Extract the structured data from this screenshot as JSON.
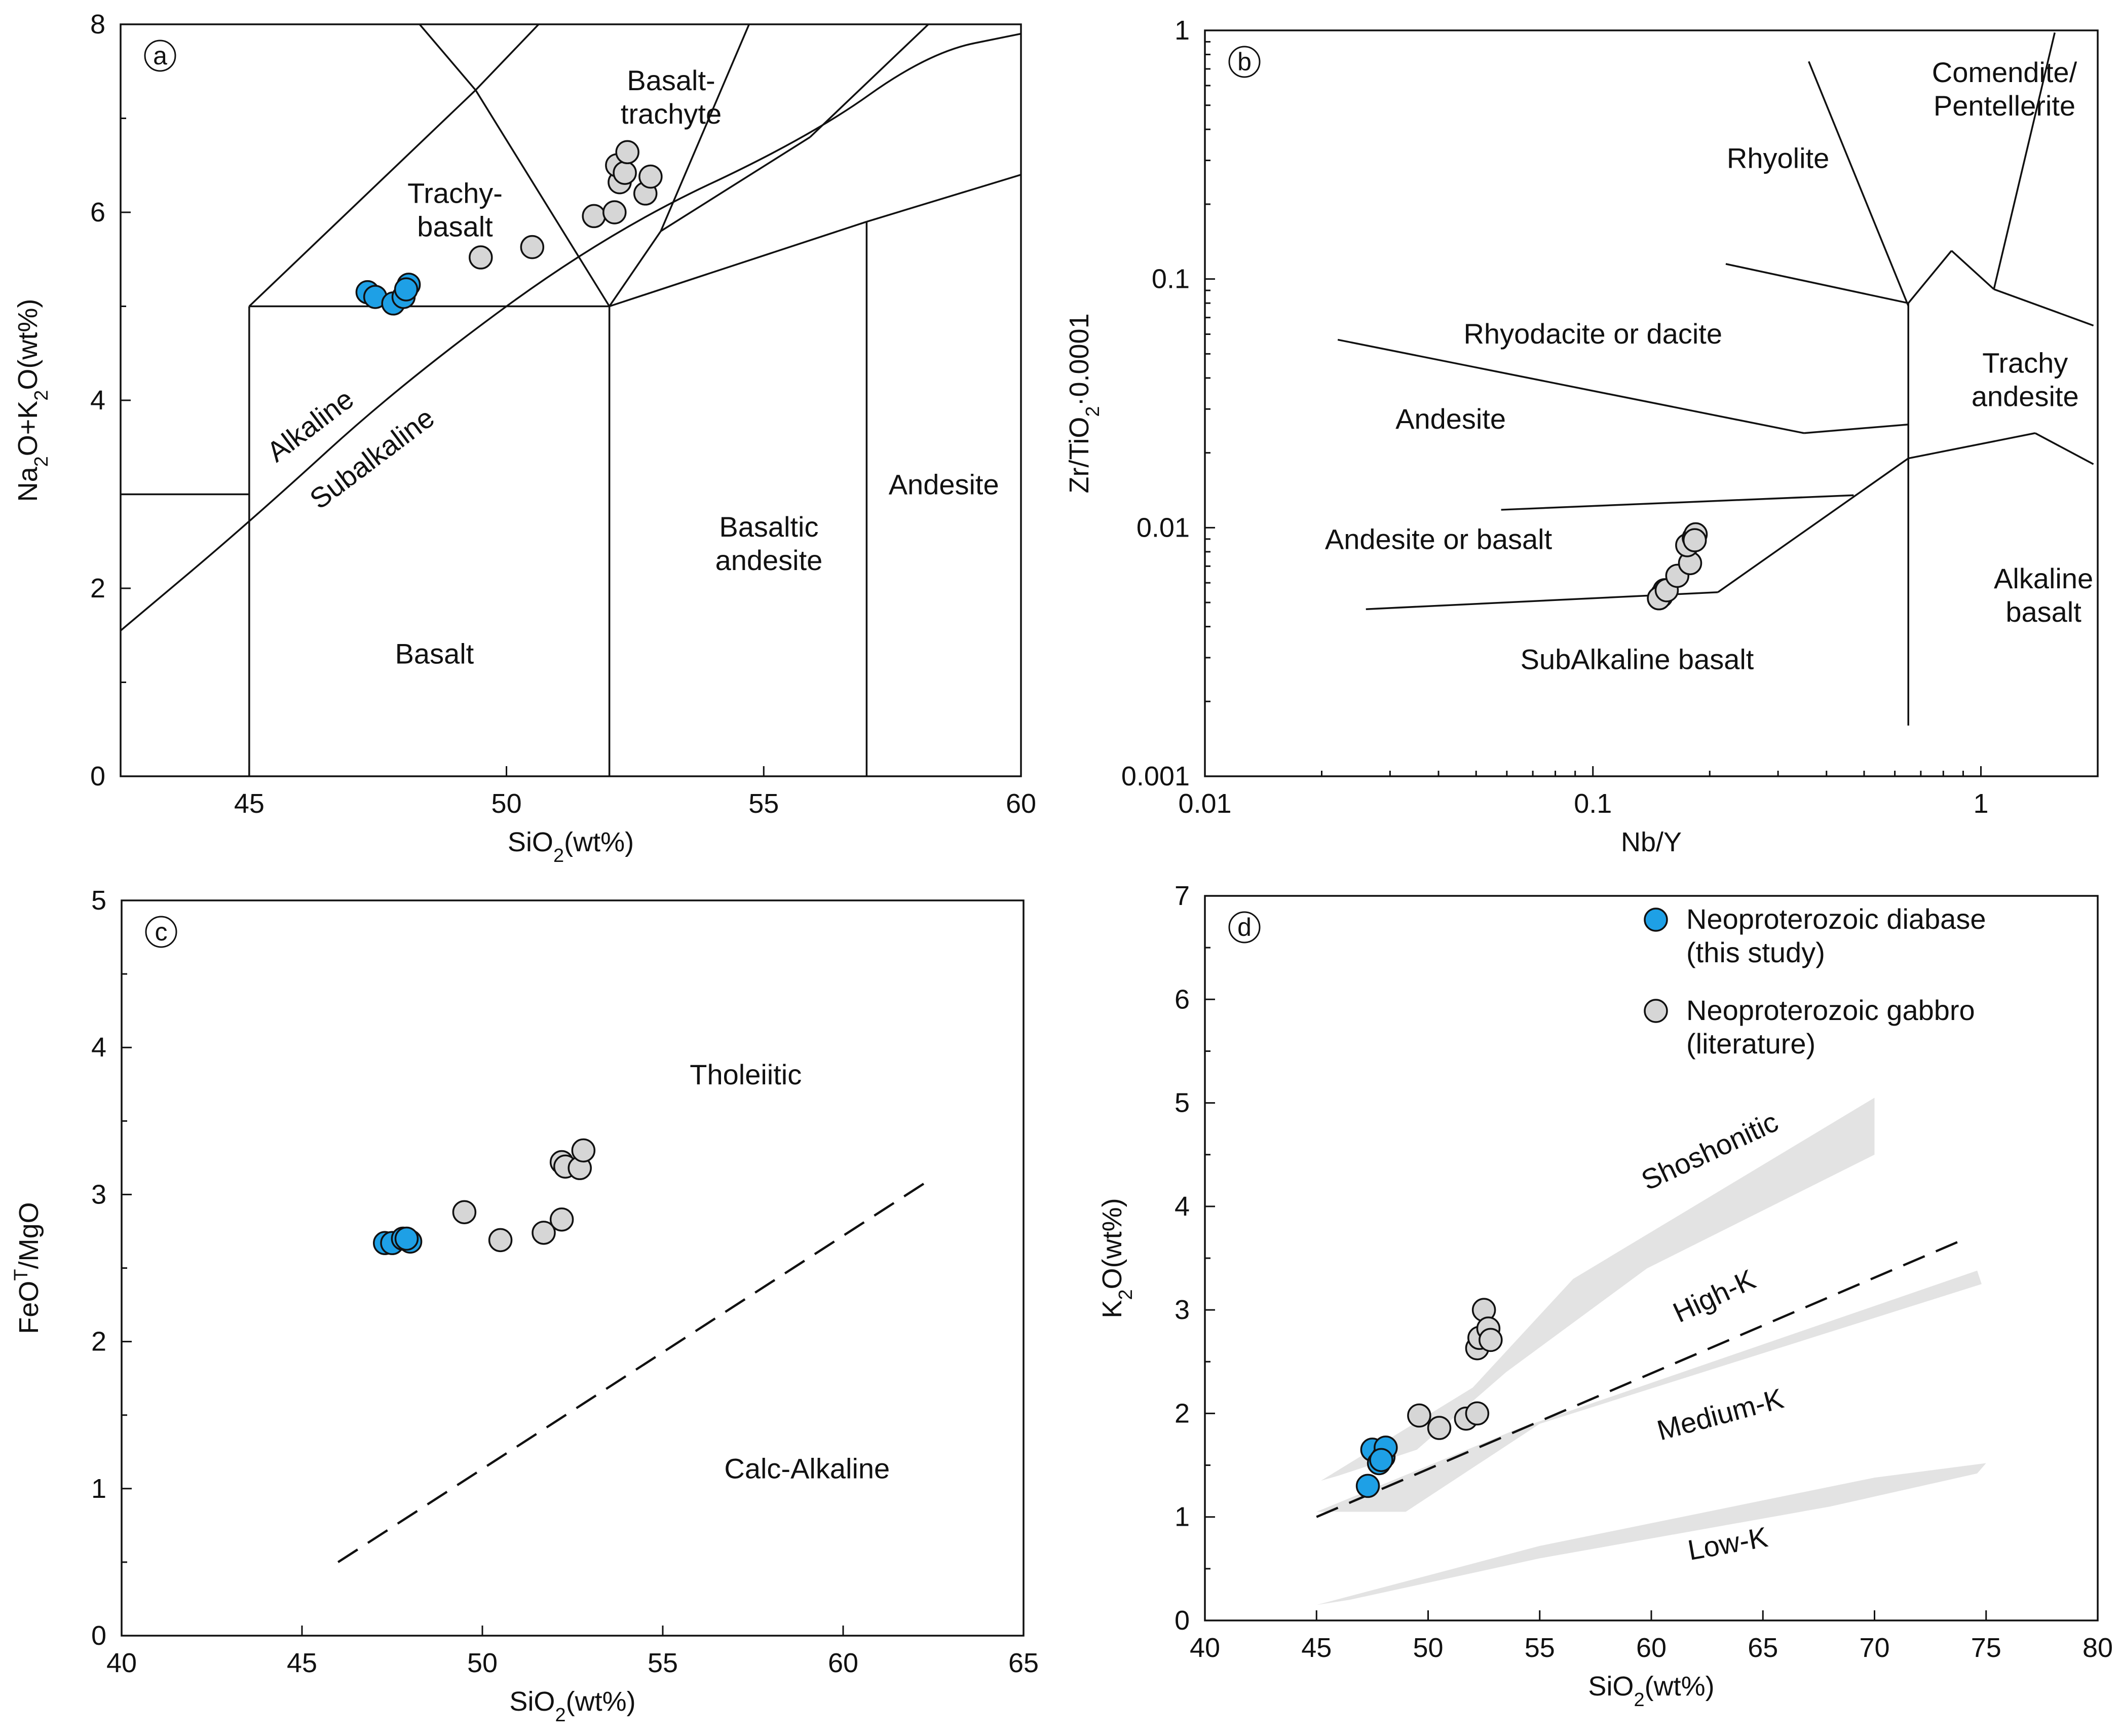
{
  "chart_data": [
    {
      "id": "a",
      "type": "scatter",
      "panel_label": "a",
      "xlabel": "SiO2(wt%)",
      "ylabel": "Na2O+K2O(wt%)",
      "xlim": [
        42.5,
        60
      ],
      "ylim": [
        0,
        8
      ],
      "x_ticks": [
        45,
        50,
        55,
        60
      ],
      "y_ticks": [
        0,
        2,
        4,
        6,
        8
      ],
      "x_tick_labels": [
        "45",
        "50",
        "55",
        "60"
      ],
      "y_tick_labels": [
        "0",
        "2",
        "4",
        "6",
        "8"
      ],
      "fields": [
        {
          "text": [
            "Trachy-",
            "basalt"
          ],
          "x": 49.0,
          "y": 6.1
        },
        {
          "text": [
            "Basalt-",
            "trachyte"
          ],
          "x": 53.2,
          "y": 7.3
        },
        {
          "text": [
            "Basalt"
          ],
          "x": 48.6,
          "y": 1.2
        },
        {
          "text": [
            "Basaltic",
            "andesite"
          ],
          "x": 55.1,
          "y": 2.55
        },
        {
          "text": [
            "Andesite"
          ],
          "x": 58.5,
          "y": 3.0
        },
        {
          "text": [
            "Alkaline"
          ],
          "x": 46.3,
          "y": 3.65,
          "rotate": -37
        },
        {
          "text": [
            "Subalkaline"
          ],
          "x": 47.5,
          "y": 3.3,
          "rotate": -37
        }
      ],
      "boundaries": [
        [
          [
            42.5,
            3.0
          ],
          [
            45,
            3.0
          ]
        ],
        [
          [
            45,
            0
          ],
          [
            45,
            5
          ]
        ],
        [
          [
            45,
            5
          ],
          [
            52,
            5
          ]
        ],
        [
          [
            52,
            0
          ],
          [
            52,
            5
          ]
        ],
        [
          [
            52,
            5
          ],
          [
            57,
            5.9
          ]
        ],
        [
          [
            57,
            0
          ],
          [
            57,
            5.9
          ]
        ],
        [
          [
            57,
            5.9
          ],
          [
            60,
            6.4
          ]
        ],
        [
          [
            45,
            5
          ],
          [
            49.4,
            7.3
          ]
        ],
        [
          [
            49.4,
            7.3
          ],
          [
            52,
            5
          ]
        ],
        [
          [
            49.4,
            7.3
          ],
          [
            53.6,
            9.7
          ]
        ],
        [
          [
            49.4,
            7.3
          ],
          [
            48,
            8.2
          ]
        ],
        [
          [
            52,
            5
          ],
          [
            53.0,
            5.8
          ]
        ],
        [
          [
            53.0,
            5.8
          ],
          [
            57.6,
            11.7
          ]
        ],
        [
          [
            53.0,
            5.8
          ],
          [
            55.9,
            6.8
          ]
        ],
        [
          [
            55.9,
            6.8
          ],
          [
            58.2,
            8.0
          ]
        ]
      ],
      "divider_curve": [
        [
          42.5,
          1.55
        ],
        [
          45,
          2.7
        ],
        [
          48,
          4.2
        ],
        [
          52,
          5.8
        ],
        [
          55.9,
          6.8
        ],
        [
          58.2,
          7.7
        ],
        [
          60,
          7.9
        ]
      ],
      "series": [
        {
          "name": "Neoproterozoic diabase (this study)",
          "color": "#1ea0e6",
          "points": [
            [
              47.3,
              5.15
            ],
            [
              47.45,
              5.1
            ],
            [
              47.8,
              5.03
            ],
            [
              48.0,
              5.1
            ],
            [
              48.1,
              5.23
            ],
            [
              48.05,
              5.18
            ]
          ]
        },
        {
          "name": "Neoproterozoic gabbro (literature)",
          "color": "#d6d6d6",
          "points": [
            [
              49.5,
              5.52
            ],
            [
              50.5,
              5.63
            ],
            [
              51.7,
              5.96
            ],
            [
              52.1,
              6.0
            ],
            [
              52.2,
              6.32
            ],
            [
              52.15,
              6.5
            ],
            [
              52.3,
              6.42
            ],
            [
              52.35,
              6.64
            ],
            [
              52.7,
              6.2
            ],
            [
              52.8,
              6.38
            ]
          ]
        }
      ]
    },
    {
      "id": "b",
      "type": "scatter",
      "scale": "log",
      "panel_label": "b",
      "xlabel": "Nb/Y",
      "ylabel": "Zr/TiO2*0.0001",
      "xlim": [
        0.01,
        2
      ],
      "ylim": [
        0.001,
        1
      ],
      "x_ticks": [
        0.01,
        0.1,
        1
      ],
      "y_ticks": [
        0.001,
        0.01,
        0.1,
        1
      ],
      "x_tick_labels": [
        "0.01",
        "0.1",
        "1"
      ],
      "y_tick_labels": [
        "0.001",
        "0.01",
        "0.1",
        "1"
      ],
      "fields": [
        {
          "text": [
            "Comendite/",
            "Pentellerite"
          ],
          "x": 1.15,
          "y": 0.62
        },
        {
          "text": [
            "Rhyolite"
          ],
          "x": 0.3,
          "y": 0.28
        },
        {
          "text": [
            "Rhyodacite or dacite"
          ],
          "x": 0.1,
          "y": 0.055
        },
        {
          "text": [
            "Trachy",
            "andesite"
          ],
          "x": 1.3,
          "y": 0.042
        },
        {
          "text": [
            "Andesite"
          ],
          "x": 0.043,
          "y": 0.025
        },
        {
          "text": [
            "Andesite or basalt"
          ],
          "x": 0.04,
          "y": 0.0082
        },
        {
          "text": [
            "SubAlkaline basalt"
          ],
          "x": 0.13,
          "y": 0.0027
        },
        {
          "text": [
            "Alkaline",
            "basalt"
          ],
          "x": 1.45,
          "y": 0.0057
        }
      ],
      "boundaries": [
        [
          [
            0.36,
            0.75
          ],
          [
            0.65,
            0.078
          ]
        ],
        [
          [
            0.22,
            0.115
          ],
          [
            0.65,
            0.08
          ]
        ],
        [
          [
            0.65,
            0.08
          ],
          [
            0.84,
            0.13
          ]
        ],
        [
          [
            0.84,
            0.13
          ],
          [
            1.08,
            0.091
          ]
        ],
        [
          [
            1.08,
            0.091
          ],
          [
            1.95,
            0.065
          ]
        ],
        [
          [
            1.08,
            0.091
          ],
          [
            1.55,
            0.98
          ]
        ],
        [
          [
            0.65,
            0.08
          ],
          [
            0.65,
            0.0016
          ]
        ],
        [
          [
            0.022,
            0.057
          ],
          [
            0.35,
            0.024
          ]
        ],
        [
          [
            0.35,
            0.024
          ],
          [
            0.65,
            0.026
          ]
        ],
        [
          [
            0.65,
            0.019
          ],
          [
            1.38,
            0.024
          ]
        ],
        [
          [
            1.38,
            0.024
          ],
          [
            1.95,
            0.018
          ]
        ],
        [
          [
            0.058,
            0.0118
          ],
          [
            0.47,
            0.0135
          ]
        ],
        [
          [
            0.026,
            0.0047
          ],
          [
            0.21,
            0.0055
          ]
        ],
        [
          [
            0.21,
            0.0055
          ],
          [
            0.65,
            0.019
          ]
        ]
      ],
      "series": [
        {
          "name": "Neoproterozoic diabase (this study)",
          "color": "#1ea0e6",
          "points": [
            [
              0.148,
              0.0052
            ],
            [
              0.151,
              0.0054
            ],
            [
              0.153,
              0.0056
            ],
            [
              0.15,
              0.0053
            ]
          ]
        },
        {
          "name": "Neoproterozoic gabbro (literature)",
          "color": "#d6d6d6",
          "points": [
            [
              0.148,
              0.0052
            ],
            [
              0.155,
              0.0056
            ],
            [
              0.165,
              0.0064
            ],
            [
              0.178,
              0.0072
            ],
            [
              0.175,
              0.0085
            ],
            [
              0.182,
              0.0091
            ],
            [
              0.184,
              0.0094
            ],
            [
              0.183,
              0.0089
            ]
          ]
        }
      ]
    },
    {
      "id": "c",
      "type": "scatter",
      "panel_label": "c",
      "xlabel": "SiO2(wt%)",
      "ylabel": "FeOT/MgO",
      "xlim": [
        40,
        65
      ],
      "ylim": [
        0,
        5
      ],
      "x_ticks": [
        40,
        45,
        50,
        55,
        60,
        65
      ],
      "y_ticks": [
        0,
        1,
        2,
        3,
        4,
        5
      ],
      "x_tick_labels": [
        "40",
        "45",
        "50",
        "55",
        "60",
        "65"
      ],
      "y_tick_labels": [
        "0",
        "1",
        "2",
        "3",
        "4",
        "5"
      ],
      "fields": [
        {
          "text": [
            "Tholeiitic"
          ],
          "x": 57.3,
          "y": 3.75
        },
        {
          "text": [
            "Calc-Alkaline"
          ],
          "x": 59.0,
          "y": 1.07
        }
      ],
      "dashed_lines": [
        [
          [
            46,
            0.5
          ],
          [
            62.4,
            3.1
          ]
        ]
      ],
      "series": [
        {
          "name": "Neoproterozoic diabase (this study)",
          "color": "#1ea0e6",
          "points": [
            [
              47.3,
              2.67
            ],
            [
              47.5,
              2.67
            ],
            [
              47.8,
              2.7
            ],
            [
              48.0,
              2.68
            ],
            [
              47.9,
              2.7
            ]
          ]
        },
        {
          "name": "Neoproterozoic gabbro (literature)",
          "color": "#d6d6d6",
          "points": [
            [
              49.5,
              2.88
            ],
            [
              50.5,
              2.69
            ],
            [
              51.7,
              2.74
            ],
            [
              52.2,
              2.83
            ],
            [
              52.2,
              3.22
            ],
            [
              52.3,
              3.19
            ],
            [
              52.7,
              3.18
            ],
            [
              52.8,
              3.3
            ]
          ]
        }
      ]
    },
    {
      "id": "d",
      "type": "scatter",
      "panel_label": "d",
      "xlabel": "SiO2(wt%)",
      "ylabel": "K2O(wt%)",
      "xlim": [
        40,
        80
      ],
      "ylim": [
        0,
        7
      ],
      "x_ticks": [
        40,
        45,
        50,
        55,
        60,
        65,
        70,
        75,
        80
      ],
      "y_ticks": [
        0,
        1,
        2,
        3,
        4,
        5,
        6,
        7
      ],
      "x_tick_labels": [
        "40",
        "45",
        "50",
        "55",
        "60",
        "65",
        "70",
        "75",
        "80"
      ],
      "y_tick_labels": [
        "0",
        "1",
        "2",
        "3",
        "4",
        "5",
        "6",
        "7"
      ],
      "fields": [
        {
          "text": [
            "Shoshonitic"
          ],
          "x": 62.8,
          "y": 4.45,
          "rotate": -25
        },
        {
          "text": [
            "High-K"
          ],
          "x": 63.0,
          "y": 3.05,
          "rotate": -25
        },
        {
          "text": [
            "Medium-K"
          ],
          "x": 63.2,
          "y": 1.9,
          "rotate": -15
        },
        {
          "text": [
            "Low-K"
          ],
          "x": 63.5,
          "y": 0.65,
          "rotate": -10
        }
      ],
      "dashed_lines": [
        [
          [
            45,
            1.0
          ],
          [
            74.2,
            3.7
          ]
        ]
      ],
      "bands": [
        [
          [
            45.2,
            1.35
          ],
          [
            52.0,
            2.25
          ],
          [
            56.5,
            3.3
          ],
          [
            70.0,
            5.05
          ],
          [
            70.0,
            4.5
          ],
          [
            59.8,
            3.4
          ],
          [
            53.5,
            2.4
          ],
          [
            49.5,
            1.65
          ],
          [
            46.0,
            1.4
          ]
        ],
        [
          [
            45.0,
            1.05
          ],
          [
            54.0,
            1.85
          ],
          [
            74.6,
            3.38
          ],
          [
            74.8,
            3.25
          ],
          [
            55.0,
            1.9
          ],
          [
            49.0,
            1.05
          ]
        ],
        [
          [
            45.0,
            0.15
          ],
          [
            55.0,
            0.72
          ],
          [
            70.0,
            1.38
          ],
          [
            75.0,
            1.52
          ],
          [
            74.6,
            1.42
          ],
          [
            68.0,
            1.1
          ],
          [
            55.0,
            0.6
          ],
          [
            46.5,
            0.2
          ]
        ]
      ],
      "series": [
        {
          "name": "Neoproterozoic diabase (this study)",
          "color": "#1ea0e6",
          "points": [
            [
              47.3,
              1.3
            ],
            [
              47.5,
              1.65
            ],
            [
              47.8,
              1.52
            ],
            [
              48.0,
              1.58
            ],
            [
              48.1,
              1.67
            ],
            [
              47.9,
              1.55
            ]
          ]
        },
        {
          "name": "Neoproterozoic gabbro (literature)",
          "color": "#d6d6d6",
          "points": [
            [
              49.6,
              1.98
            ],
            [
              50.5,
              1.86
            ],
            [
              51.7,
              1.95
            ],
            [
              52.2,
              2.0
            ],
            [
              52.2,
              2.63
            ],
            [
              52.3,
              2.73
            ],
            [
              52.5,
              3.0
            ],
            [
              52.7,
              2.82
            ],
            [
              52.8,
              2.71
            ]
          ]
        }
      ],
      "legend": {
        "placement": "top-right",
        "entries": [
          {
            "lines": [
              "Neoproterozoic diabase",
              "(this study)"
            ],
            "color": "#1ea0e6"
          },
          {
            "lines": [
              "Neoproterozoic gabbro",
              "(literature)"
            ],
            "color": "#d6d6d6"
          }
        ]
      }
    }
  ]
}
